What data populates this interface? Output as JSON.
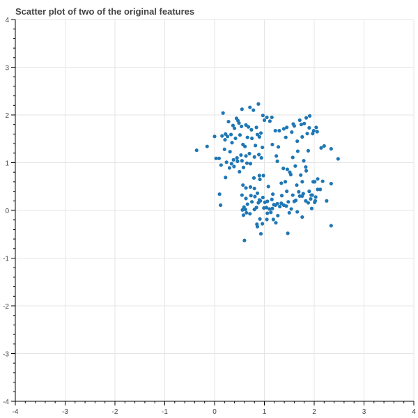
{
  "chart_data": {
    "type": "scatter",
    "title": "Scatter plot of two of the original features",
    "xlabel": "",
    "ylabel": "",
    "xlim": [
      -4,
      4
    ],
    "ylim": [
      -4,
      4
    ],
    "xticks": [
      -4,
      -3,
      -2,
      -1,
      0,
      1,
      2,
      3,
      4
    ],
    "yticks": [
      -4,
      -3,
      -2,
      -1,
      0,
      1,
      2,
      3,
      4
    ],
    "grid": true,
    "point_color": "#1f77b4",
    "series": [
      {
        "x": [
          0.17,
          0.28,
          0.37,
          0.44,
          0.49,
          0.55,
          0.63,
          0.71,
          0.78,
          0.84,
          0.88,
          0.97,
          1.05,
          1.15,
          1.22,
          1.39,
          1.58,
          1.74,
          1.84,
          1.91,
          0.15,
          0.22,
          0.33,
          0.4,
          0.47,
          0.54,
          0.68,
          0.74,
          0.86,
          0.93,
          1.0,
          1.11,
          1.3,
          1.45,
          1.6,
          1.71,
          1.8,
          1.9,
          1.97,
          2.04,
          0.21,
          0.26,
          0.35,
          0.42,
          0.51,
          0.57,
          0.66,
          0.75,
          0.82,
          0.9,
          1.16,
          1.28,
          1.43,
          1.55,
          1.66,
          1.76,
          1.86,
          1.99,
          2.06,
          2.14,
          0.0,
          0.09,
          0.2,
          0.31,
          0.38,
          0.46,
          0.53,
          0.61,
          0.7,
          0.8,
          0.89,
          0.96,
          1.26,
          1.46,
          1.57,
          1.67,
          1.79,
          1.88,
          2.2,
          2.34,
          -0.36,
          -0.15,
          0.03,
          0.13,
          0.24,
          0.34,
          0.45,
          0.55,
          0.63,
          0.72,
          0.94,
          1.24,
          1.38,
          1.51,
          1.62,
          1.73,
          1.83,
          2.48,
          0.1,
          0.22,
          0.3,
          0.39,
          0.5,
          0.58,
          0.65,
          0.79,
          0.9,
          1.42,
          1.53,
          1.65,
          1.76,
          1.84,
          2.01,
          2.07,
          2.17,
          2.34,
          0.57,
          0.63,
          0.72,
          0.8,
          0.86,
          0.91,
          0.98,
          1.08,
          1.17,
          1.34,
          1.45,
          1.57,
          1.69,
          1.9,
          1.96,
          2.07,
          2.12,
          0.55,
          0.63,
          0.73,
          0.81,
          0.9,
          0.97,
          1.06,
          1.15,
          1.26,
          1.35,
          1.48,
          1.63,
          1.78,
          1.88,
          2.02,
          2.25,
          0.12,
          0.59,
          0.66,
          0.75,
          0.84,
          0.92,
          1.01,
          1.1,
          1.19,
          1.31,
          1.44,
          1.6,
          1.76,
          1.93,
          2.03,
          0.56,
          0.62,
          0.71,
          0.8,
          0.88,
          0.99,
          1.04,
          1.13,
          1.22,
          1.34,
          1.5,
          1.66,
          1.83,
          1.94,
          0.58,
          0.64,
          0.86,
          0.96,
          1.05,
          1.18,
          1.27,
          1.76,
          0.85,
          0.93,
          1.23,
          1.47,
          2.34,
          0.6,
          0.91,
          1.06,
          1.16,
          1.39,
          1.54,
          1.71,
          1.95,
          2.01,
          1.98
        ],
        "y": [
          2.04,
          1.86,
          1.78,
          1.93,
          1.83,
          2.12,
          1.79,
          2.16,
          2.1,
          1.74,
          2.23,
          1.99,
          1.95,
          1.95,
          1.67,
          1.71,
          1.81,
          1.8,
          1.94,
          1.98,
          1.56,
          1.6,
          1.59,
          1.72,
          1.88,
          1.76,
          1.75,
          1.69,
          1.59,
          1.62,
          1.89,
          1.87,
          1.67,
          1.74,
          1.77,
          1.89,
          1.82,
          1.73,
          1.61,
          1.74,
          1.48,
          1.55,
          1.42,
          1.51,
          1.58,
          1.38,
          1.53,
          1.51,
          1.36,
          1.54,
          1.38,
          1.33,
          1.53,
          1.64,
          1.45,
          1.54,
          1.61,
          1.67,
          1.65,
          1.31,
          1.55,
          1.09,
          1.28,
          1.23,
          1.06,
          1.03,
          1.16,
          1.34,
          1.19,
          1.12,
          1.17,
          1.32,
          1.03,
          0.86,
          1.11,
          1.24,
          1.04,
          1.25,
          1.35,
          1.29,
          1.26,
          1.34,
          1.09,
          0.95,
          1.01,
          0.98,
          1.1,
          1.04,
          1.14,
          0.98,
          1.1,
          1.14,
          0.88,
          0.8,
          0.93,
          0.74,
          0.91,
          1.08,
          0.34,
          0.69,
          0.89,
          0.92,
          0.81,
          0.9,
          0.99,
          0.68,
          0.73,
          0.6,
          0.75,
          0.53,
          0.6,
          0.83,
          0.6,
          0.66,
          0.61,
          0.56,
          0.53,
          0.47,
          0.49,
          0.46,
          0.36,
          0.65,
          0.73,
          0.5,
          0.34,
          0.57,
          0.4,
          0.32,
          0.39,
          0.4,
          0.32,
          0.44,
          0.44,
          0.32,
          0.25,
          0.31,
          0.29,
          0.22,
          0.27,
          0.19,
          0.23,
          0.14,
          0.31,
          0.18,
          0.21,
          0.35,
          0.16,
          0.2,
          0.2,
          0.11,
          0.07,
          0.13,
          0.18,
          0.06,
          0.2,
          0.17,
          0.03,
          0.12,
          0.08,
          0.09,
          0.19,
          0.3,
          0.24,
          0.28,
          0.01,
          0.02,
          -0.07,
          0.02,
          0.16,
          0.05,
          0.06,
          -0.04,
          0.11,
          0.15,
          -0.05,
          -0.03,
          0.2,
          0.32,
          -0.1,
          -0.05,
          -0.34,
          -0.28,
          -0.19,
          -0.19,
          -0.11,
          -0.14,
          -0.29,
          -0.49,
          -0.26,
          -0.48,
          -0.32,
          -0.63,
          -0.18,
          -0.06,
          0.04,
          0.11,
          0.03,
          0.3,
          0.04,
          0.17,
          0.6
        ]
      }
    ]
  }
}
